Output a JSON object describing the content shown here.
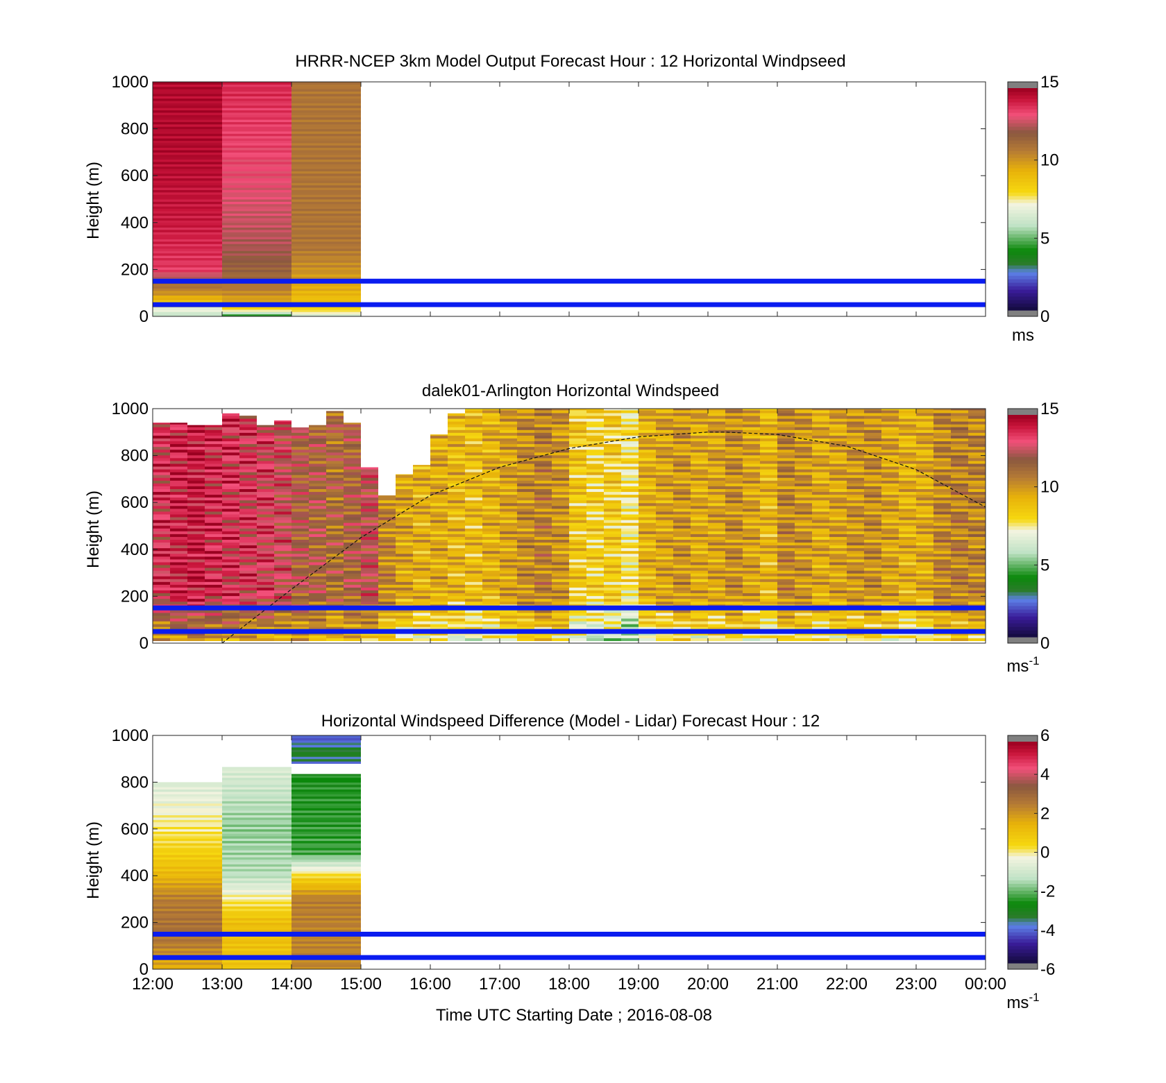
{
  "figure": {
    "xlabel": "Time UTC  Starting Date ; 2016-08-08",
    "x_ticks": [
      "12:00",
      "13:00",
      "14:00",
      "15:00",
      "16:00",
      "17:00",
      "18:00",
      "19:00",
      "20:00",
      "21:00",
      "22:00",
      "23:00",
      "00:00"
    ]
  },
  "chart_data": [
    {
      "type": "heatmap",
      "title": "HRRR-NCEP 3km Model Output   Forecast Hour : 12 Horizontal Windpseed",
      "ylabel": "Height (m)",
      "x_range": [
        "12:00",
        "00:00"
      ],
      "ylim": [
        0,
        1000
      ],
      "y_ticks": [
        0,
        200,
        400,
        600,
        800,
        1000
      ],
      "colorbar": {
        "min": 0,
        "max": 15,
        "ticks": [
          0,
          5,
          10,
          15
        ],
        "unit": "ms",
        "unit_sup": ""
      },
      "reference_lines_m": [
        50,
        150
      ],
      "columns": [
        {
          "start": "12:00",
          "end": "13:00",
          "profile": [
            [
              0,
              5.8
            ],
            [
              40,
              7.2
            ],
            [
              80,
              9.6
            ],
            [
              140,
              11.4
            ],
            [
              200,
              13.6
            ],
            [
              400,
              14.2
            ],
            [
              700,
              14.6
            ],
            [
              1000,
              14.6
            ]
          ]
        },
        {
          "start": "13:00",
          "end": "14:00",
          "profile": [
            [
              0,
              3.8
            ],
            [
              40,
              9.2
            ],
            [
              140,
              11.2
            ],
            [
              300,
              12.4
            ],
            [
              600,
              13.2
            ],
            [
              850,
              13.6
            ],
            [
              1000,
              13.9
            ]
          ]
        },
        {
          "start": "14:00",
          "end": "15:00",
          "profile": [
            [
              0,
              6.3
            ],
            [
              40,
              8.6
            ],
            [
              140,
              9.8
            ],
            [
              300,
              11.0
            ],
            [
              1000,
              11.0
            ]
          ]
        }
      ]
    },
    {
      "type": "heatmap",
      "title": "dalek01-Arlington  Horizontal Windspeed",
      "ylabel": "Height (m)",
      "x_range": [
        "12:00",
        "00:00"
      ],
      "ylim": [
        0,
        1000
      ],
      "y_ticks": [
        0,
        200,
        400,
        600,
        800,
        1000
      ],
      "colorbar": {
        "min": 0,
        "max": 15,
        "ticks": [
          0,
          5,
          10,
          15
        ],
        "unit": "ms",
        "unit_sup": "-1"
      },
      "reference_lines_m": [
        50,
        150
      ],
      "boundary_layer_curve": {
        "hours": [
          13.0,
          14.0,
          15.0,
          16.0,
          17.0,
          18.0,
          19.0,
          20.0,
          20.25,
          21.0,
          22.0,
          23.0,
          24.0
        ],
        "height_m": [
          0,
          230,
          450,
          630,
          750,
          830,
          880,
          900,
          900,
          890,
          840,
          740,
          580
        ]
      },
      "segments_per_hour": 4,
      "segment_top_m": [
        940,
        940,
        930,
        930,
        980,
        970,
        930,
        950,
        920,
        930,
        990,
        940,
        750,
        630,
        720,
        760,
        890,
        980,
        1000,
        1000,
        1000,
        1000,
        1000,
        1000,
        1000,
        1000,
        1000,
        1000,
        1000,
        1000,
        1000,
        1000,
        1000,
        1000,
        1000,
        1000,
        1000,
        1000,
        1000,
        1000,
        1000,
        1000,
        1000,
        1000,
        1000,
        1000,
        1000,
        1000
      ],
      "segment_mean_speed": [
        13.5,
        14.0,
        14.2,
        13.8,
        13.6,
        13.4,
        13.2,
        12.8,
        12.0,
        11.8,
        11.4,
        11.8,
        12.6,
        10.6,
        9.8,
        9.4,
        9.6,
        9.2,
        9.0,
        9.4,
        9.8,
        10.4,
        10.8,
        10.2,
        8.6,
        8.2,
        8.4,
        7.6,
        9.4,
        9.8,
        10.2,
        9.6,
        9.8,
        10.4,
        9.8,
        9.2,
        10.6,
        10.2,
        9.6,
        9.8,
        10.2,
        10.4,
        9.8,
        9.4,
        9.6,
        10.6,
        10.8,
        10.6
      ],
      "data_end": "23:45"
    },
    {
      "type": "heatmap",
      "title": "Horizontal Windspeed Difference (Model - Lidar) Forecast Hour : 12",
      "ylabel": "Height (m)",
      "x_range": [
        "12:00",
        "00:00"
      ],
      "ylim": [
        0,
        1000
      ],
      "y_ticks": [
        0,
        200,
        400,
        600,
        800,
        1000
      ],
      "colorbar": {
        "min": -6,
        "max": 6,
        "ticks": [
          -6,
          -4,
          -2,
          0,
          2,
          4,
          6
        ],
        "unit": "ms",
        "unit_sup": "-1"
      },
      "reference_lines_m": [
        50,
        150
      ],
      "columns": [
        {
          "start": "12:00",
          "end": "13:00",
          "range_m": [
            0,
            800
          ],
          "profile": [
            [
              0,
              1.6
            ],
            [
              150,
              3.0
            ],
            [
              300,
              2.6
            ],
            [
              400,
              1.4
            ],
            [
              500,
              0.6
            ],
            [
              700,
              -0.4
            ],
            [
              800,
              -0.8
            ]
          ]
        },
        {
          "start": "13:00",
          "end": "14:00",
          "range_m": [
            0,
            865
          ],
          "profile": [
            [
              0,
              1.0
            ],
            [
              200,
              1.2
            ],
            [
              300,
              0.0
            ],
            [
              400,
              -1.4
            ],
            [
              600,
              -1.8
            ],
            [
              865,
              -0.8
            ]
          ]
        },
        {
          "start": "14:00",
          "end": "15:00",
          "range_m": [
            0,
            835
          ],
          "profile": [
            [
              0,
              2.4
            ],
            [
              300,
              2.6
            ],
            [
              400,
              0.4
            ],
            [
              500,
              -2.4
            ],
            [
              835,
              -2.7
            ]
          ]
        },
        {
          "start": "14:00",
          "end": "15:00",
          "range_m": [
            880,
            1000
          ],
          "profile": [
            [
              880,
              -4.0
            ],
            [
              930,
              -3.2
            ],
            [
              1000,
              -4.6
            ]
          ]
        }
      ]
    }
  ]
}
